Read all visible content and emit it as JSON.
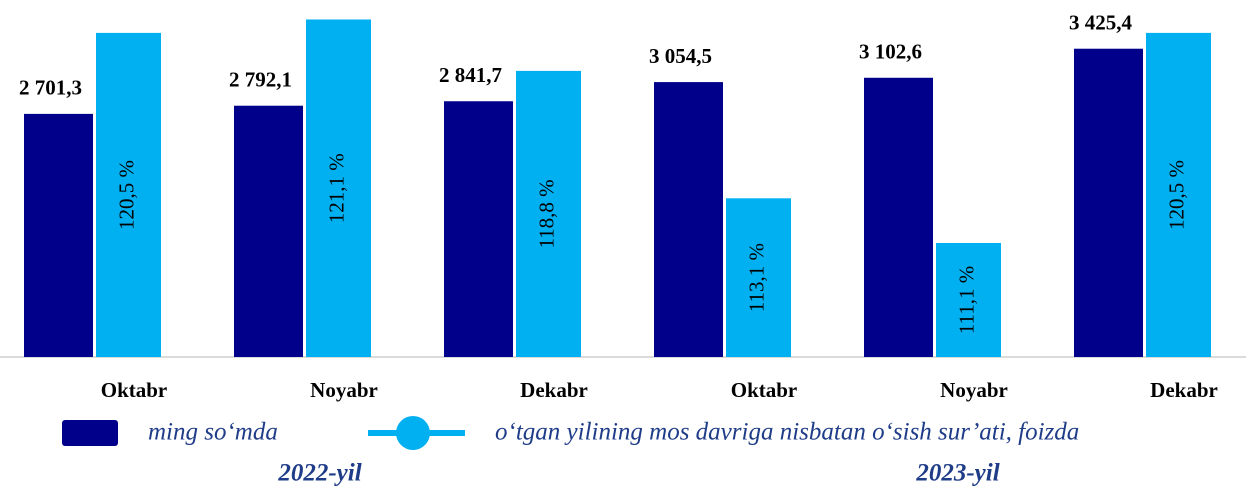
{
  "chart_data": {
    "type": "bar",
    "categories": [
      "Oktabr",
      "Noyabr",
      "Dekabr",
      "Oktabr",
      "Noyabr",
      "Dekabr"
    ],
    "group_labels": [
      "2022-yil",
      "2023-yil"
    ],
    "series": [
      {
        "name": "ming so‘mda",
        "color": "#00008b",
        "values": [
          2701.3,
          2792.1,
          2841.7,
          3054.5,
          3102.6,
          3425.4
        ],
        "value_labels": [
          "2 701,3",
          "2 792,1",
          "2 841,7",
          "3 054,5",
          "3 102,6",
          "3 425,4"
        ]
      },
      {
        "name": "o‘tgan yilining mos davriga nisbatan o‘sish sur’ati, foizda",
        "color": "#00b0f0",
        "axis": "y2",
        "values": [
          120.5,
          121.1,
          118.8,
          113.1,
          111.1,
          120.5
        ],
        "value_labels": [
          "120,5 %",
          "121,1 %",
          "118,8 %",
          "113,1 %",
          "111,1 %",
          "120,5 %"
        ]
      }
    ],
    "ylim": [
      0,
      3800
    ],
    "y2lim": [
      106,
      121.3
    ]
  }
}
